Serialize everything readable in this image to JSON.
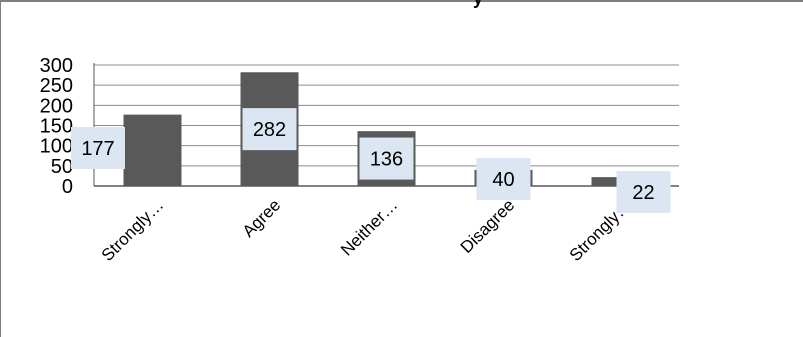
{
  "chart_data": {
    "type": "bar",
    "title": "",
    "title_fragment": "y",
    "xlabel": "",
    "ylabel": "",
    "categories": [
      "Strongly…",
      "Agree",
      "Neither…",
      "Disagree",
      "Strongly…"
    ],
    "values": [
      177,
      282,
      136,
      40,
      22
    ],
    "y_ticks": [
      "0",
      "50",
      "100",
      "150",
      "200",
      "250",
      "300"
    ],
    "ylim": [
      0,
      300
    ],
    "grid": true,
    "legend": "none",
    "colors": {
      "bar": "#595959",
      "grid": "#8c8c8c",
      "axis": "#595959",
      "label_box": "#dce6f2"
    }
  }
}
